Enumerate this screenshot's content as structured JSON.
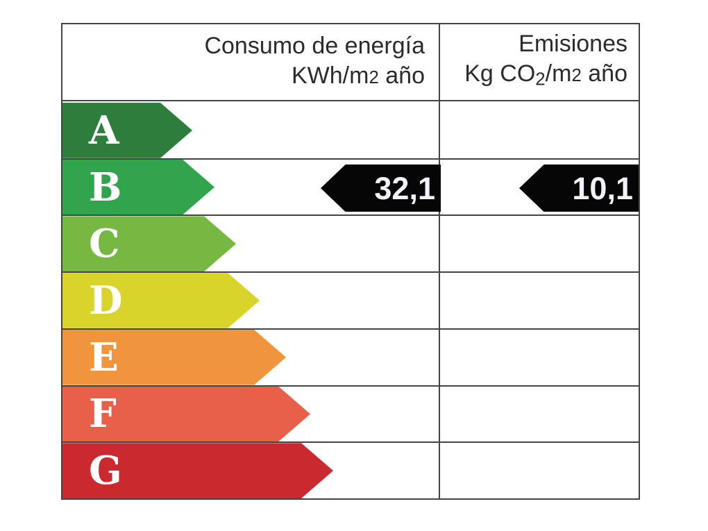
{
  "header": {
    "consumption": {
      "line1": "Consumo de energía",
      "unit_prefix": "KWh/m",
      "unit_exp": "2",
      "unit_suffix": " año"
    },
    "emissions": {
      "line1": "Emisiones",
      "unit_kg_co": "Kg CO",
      "unit_sub": "2",
      "unit_mid": "/m",
      "unit_exp": "2",
      "unit_suffix": " año"
    }
  },
  "chart_data": {
    "type": "bar",
    "title": "",
    "columns": [
      "Consumo de energía KWh/m2 año",
      "Emisiones Kg CO2/m2 año"
    ],
    "categories": [
      "A",
      "B",
      "C",
      "D",
      "E",
      "F",
      "G"
    ],
    "ratings": [
      {
        "letter": "A",
        "color": "#2f7d3c"
      },
      {
        "letter": "B",
        "color": "#31a44d"
      },
      {
        "letter": "C",
        "color": "#76b842"
      },
      {
        "letter": "D",
        "color": "#d8d42b"
      },
      {
        "letter": "E",
        "color": "#f0953e"
      },
      {
        "letter": "F",
        "color": "#e85f4a"
      },
      {
        "letter": "G",
        "color": "#ca2a2f"
      }
    ],
    "current_rating": "B",
    "consumption_kwh_per_m2_year": 32.1,
    "emissions_kg_co2_per_m2_year": 10.1,
    "value_labels": {
      "consumption": "32,1",
      "emissions": "10,1"
    },
    "legend_position": "none",
    "grid": true
  },
  "colors": {
    "border": "#444444",
    "value_arrow_bg": "#060606",
    "value_text": "#ffffff",
    "header_text": "#2b2b2b"
  }
}
